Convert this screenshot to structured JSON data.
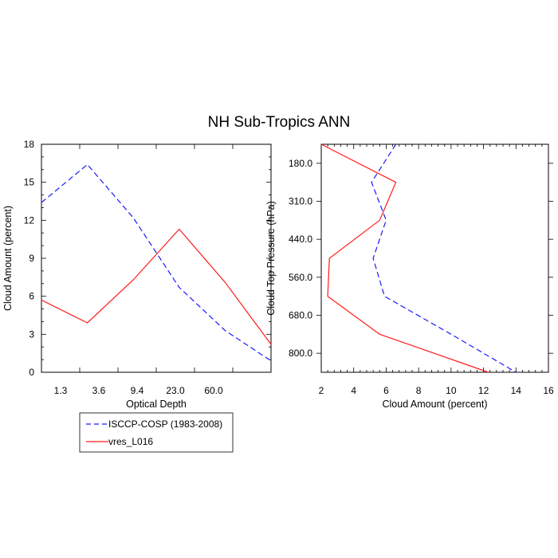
{
  "title": "NH Sub-Tropics ANN",
  "colors": {
    "obs": "#1a1aff",
    "model": "#ff1a1a",
    "axis": "#000000"
  },
  "legend": [
    {
      "label": "ISCCP-COSP (1983-2008)",
      "style": "dashed",
      "color": "#1a1aff"
    },
    {
      "label": "vres_L016",
      "style": "solid",
      "color": "#ff1a1a"
    }
  ],
  "chart_data": [
    {
      "type": "line",
      "xlabel": "Optical Depth",
      "ylabel": "Cloud Amount (percent)",
      "x_ticks": [
        "1.3",
        "3.6",
        "9.4",
        "23.0",
        "60.0"
      ],
      "x_positions": [
        0,
        1,
        2,
        3,
        4,
        5,
        6
      ],
      "xlim": [
        0,
        6
      ],
      "ylim": [
        0,
        18
      ],
      "y_ticks": [
        "0",
        "3",
        "6",
        "9",
        "12",
        "15",
        "18"
      ],
      "series": [
        {
          "name": "ISCCP-COSP (1983-2008)",
          "style": "dashed",
          "values": [
            13.4,
            16.4,
            12.2,
            6.7,
            3.3,
            0.9
          ]
        },
        {
          "name": "vres_L016",
          "style": "solid",
          "values": [
            5.7,
            3.9,
            7.3,
            11.3,
            7.1,
            2.2
          ]
        }
      ]
    },
    {
      "type": "line",
      "xlabel": "Cloud Amount (percent)",
      "ylabel": "Cloud Top Pressure (hPa)",
      "xlim": [
        2,
        16
      ],
      "x_ticks": [
        "2",
        "4",
        "6",
        "8",
        "10",
        "12",
        "14",
        "16"
      ],
      "y_ticks": [
        "180.0",
        "310.0",
        "440.0",
        "560.0",
        "680.0",
        "800.0"
      ],
      "y_levels": [
        0,
        1,
        2,
        3,
        4,
        5,
        6
      ],
      "ylim_reversed": true,
      "series": [
        {
          "name": "ISCCP-COSP (1983-2008)",
          "style": "dashed",
          "values": [
            6.6,
            5.1,
            6.0,
            5.2,
            5.9,
            10.0,
            14.0
          ]
        },
        {
          "name": "vres_L016",
          "style": "solid",
          "values": [
            2.0,
            6.6,
            5.6,
            2.5,
            2.4,
            5.6,
            12.3
          ]
        }
      ]
    }
  ]
}
